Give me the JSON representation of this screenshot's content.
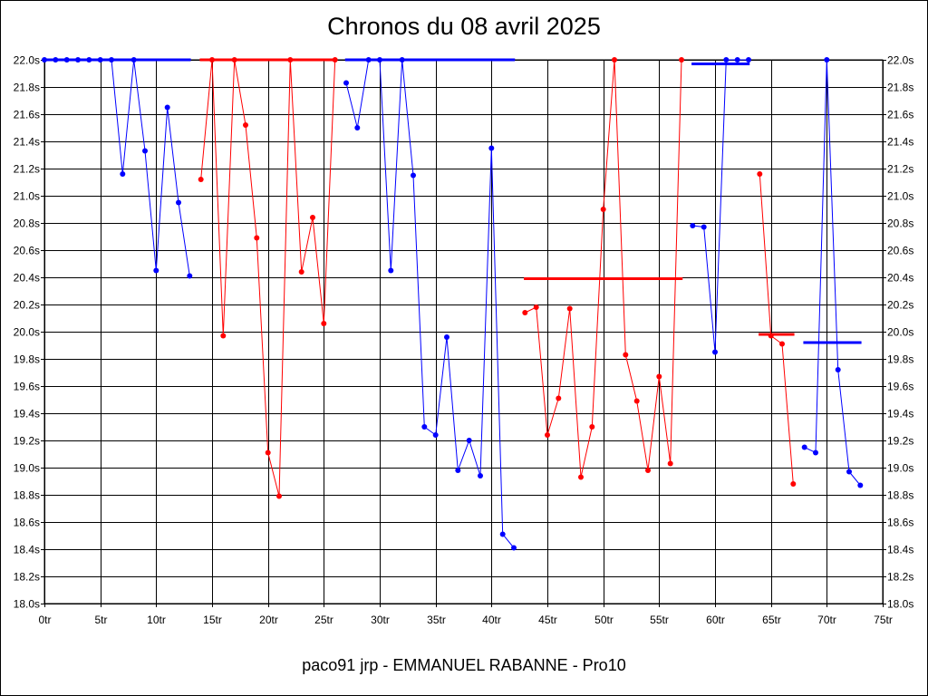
{
  "chart_data": {
    "type": "line",
    "title": "Chronos du 08 avril 2025",
    "caption": "paco91 jrp - EMMANUEL RABANNE - Pro10",
    "xlabel": "",
    "ylabel": "",
    "xlim": [
      0,
      75
    ],
    "ylim": [
      18.0,
      22.0
    ],
    "x_ticks": [
      "0tr",
      "5tr",
      "10tr",
      "15tr",
      "20tr",
      "25tr",
      "30tr",
      "35tr",
      "40tr",
      "45tr",
      "50tr",
      "55tr",
      "60tr",
      "65tr",
      "70tr",
      "75tr"
    ],
    "y_ticks": [
      "18.0s",
      "18.2s",
      "18.4s",
      "18.6s",
      "18.8s",
      "19.0s",
      "19.2s",
      "19.4s",
      "19.6s",
      "19.8s",
      "20.0s",
      "20.2s",
      "20.4s",
      "20.6s",
      "20.8s",
      "21.0s",
      "21.2s",
      "21.4s",
      "21.6s",
      "21.8s",
      "22.0s"
    ],
    "grid": true,
    "colors": {
      "blue": "#0000ff",
      "red": "#ff0000"
    },
    "segments": [
      {
        "color": "#0000ff",
        "points": [
          [
            0,
            22.0
          ],
          [
            1,
            22.0
          ],
          [
            2,
            22.0
          ],
          [
            3,
            22.0
          ],
          [
            4,
            22.0
          ],
          [
            5,
            22.0
          ],
          [
            6,
            22.0
          ],
          [
            7,
            21.16
          ],
          [
            8,
            22.0
          ],
          [
            9,
            21.33
          ],
          [
            10,
            20.45
          ],
          [
            11,
            21.65
          ],
          [
            12,
            20.95
          ],
          [
            13,
            20.41
          ]
        ],
        "avg": 22.0,
        "avg_range": [
          0,
          13
        ]
      },
      {
        "color": "#ff0000",
        "points": [
          [
            14,
            21.12
          ],
          [
            15,
            22.0
          ],
          [
            16,
            19.97
          ],
          [
            17,
            22.0
          ],
          [
            18,
            21.52
          ],
          [
            19,
            20.69
          ],
          [
            20,
            19.11
          ],
          [
            21,
            18.79
          ],
          [
            22,
            22.0
          ],
          [
            23,
            20.44
          ],
          [
            24,
            20.84
          ],
          [
            25,
            20.06
          ],
          [
            26,
            22.0
          ]
        ],
        "avg": 22.0,
        "avg_range": [
          14,
          26
        ]
      },
      {
        "color": "#0000ff",
        "points": [
          [
            27,
            21.83
          ],
          [
            28,
            21.5
          ],
          [
            29,
            22.0
          ],
          [
            30,
            22.0
          ],
          [
            31,
            20.45
          ],
          [
            32,
            22.0
          ],
          [
            33,
            21.15
          ],
          [
            34,
            19.3
          ],
          [
            35,
            19.24
          ],
          [
            36,
            19.96
          ],
          [
            37,
            18.98
          ],
          [
            38,
            19.2
          ],
          [
            39,
            18.94
          ],
          [
            40,
            21.35
          ],
          [
            41,
            18.51
          ],
          [
            42,
            18.41
          ]
        ],
        "avg": 22.0,
        "avg_range": [
          27,
          42
        ]
      },
      {
        "color": "#ff0000",
        "points": [
          [
            43,
            20.14
          ],
          [
            44,
            20.18
          ],
          [
            45,
            19.24
          ],
          [
            46,
            19.51
          ],
          [
            47,
            20.17
          ],
          [
            48,
            18.93
          ],
          [
            49,
            19.3
          ],
          [
            50,
            20.9
          ],
          [
            51,
            22.0
          ],
          [
            52,
            19.83
          ],
          [
            53,
            19.49
          ],
          [
            54,
            18.98
          ],
          [
            55,
            19.67
          ],
          [
            56,
            19.03
          ],
          [
            57,
            22.0
          ]
        ],
        "avg": 20.39,
        "avg_range": [
          43,
          57
        ]
      },
      {
        "color": "#0000ff",
        "points": [
          [
            58,
            20.78
          ],
          [
            59,
            20.77
          ],
          [
            60,
            19.85
          ],
          [
            61,
            22.0
          ],
          [
            62,
            22.0
          ],
          [
            63,
            22.0
          ]
        ],
        "avg": 21.97,
        "avg_range": [
          58,
          63
        ]
      },
      {
        "color": "#ff0000",
        "points": [
          [
            64,
            21.16
          ],
          [
            65,
            19.97
          ],
          [
            66,
            19.91
          ],
          [
            67,
            18.88
          ]
        ],
        "avg": 19.98,
        "avg_range": [
          64,
          67
        ]
      },
      {
        "color": "#0000ff",
        "points": [
          [
            68,
            19.15
          ],
          [
            69,
            19.11
          ],
          [
            70,
            22.0
          ],
          [
            71,
            19.72
          ],
          [
            72,
            18.97
          ],
          [
            73,
            18.87
          ]
        ],
        "avg": 19.92,
        "avg_range": [
          68,
          73
        ]
      }
    ]
  }
}
